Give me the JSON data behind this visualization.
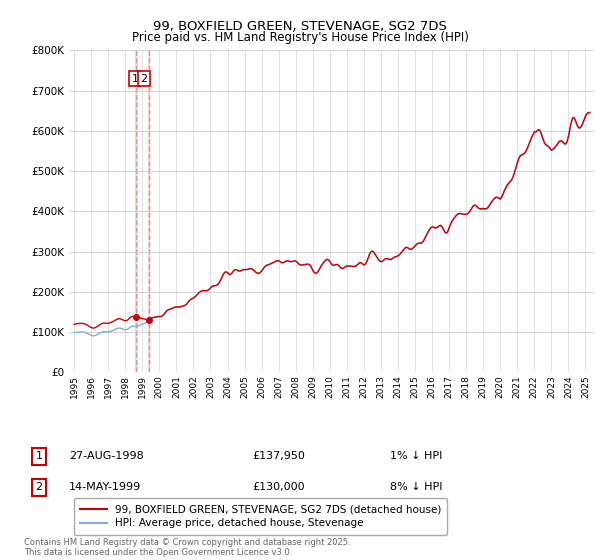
{
  "title": "99, BOXFIELD GREEN, STEVENAGE, SG2 7DS",
  "subtitle": "Price paid vs. HM Land Registry's House Price Index (HPI)",
  "transactions": [
    {
      "num": 1,
      "date": "27-AUG-1998",
      "price": 137950,
      "pct": "1%",
      "dir": "↓",
      "year": 1998.65
    },
    {
      "num": 2,
      "date": "14-MAY-1999",
      "price": 130000,
      "pct": "8%",
      "dir": "↓",
      "year": 1999.37
    }
  ],
  "red_label": "99, BOXFIELD GREEN, STEVENAGE, SG2 7DS (detached house)",
  "blue_label": "HPI: Average price, detached house, Stevenage",
  "footnote": "Contains HM Land Registry data © Crown copyright and database right 2025.\nThis data is licensed under the Open Government Licence v3.0.",
  "ylim": [
    0,
    800000
  ],
  "yticks": [
    0,
    100000,
    200000,
    300000,
    400000,
    500000,
    600000,
    700000,
    800000
  ],
  "xlim_start": 1994.7,
  "xlim_end": 2025.5,
  "xticks": [
    1995,
    1996,
    1997,
    1998,
    1999,
    2000,
    2001,
    2002,
    2003,
    2004,
    2005,
    2006,
    2007,
    2008,
    2009,
    2010,
    2011,
    2012,
    2013,
    2014,
    2015,
    2016,
    2017,
    2018,
    2019,
    2020,
    2021,
    2022,
    2023,
    2024,
    2025
  ],
  "red_color": "#cc0000",
  "blue_color": "#88aadd",
  "dashed_color": "#dd8888",
  "vline_fill": "#e8d0d0",
  "background": "#ffffff",
  "grid_color": "#cccccc",
  "t1_year": 1998.65,
  "t2_year": 1999.37,
  "t1_price": 137950,
  "t2_price": 130000,
  "hpi_years": [
    1995,
    1995.083,
    1995.167,
    1995.25,
    1995.333,
    1995.417,
    1995.5,
    1995.583,
    1995.667,
    1995.75,
    1995.833,
    1995.917,
    1996,
    1996.083,
    1996.167,
    1996.25,
    1996.333,
    1996.417,
    1996.5,
    1996.583,
    1996.667,
    1996.75,
    1996.833,
    1996.917,
    1997,
    1997.083,
    1997.167,
    1997.25,
    1997.333,
    1997.417,
    1997.5,
    1997.583,
    1997.667,
    1997.75,
    1997.833,
    1997.917,
    1998,
    1998.083,
    1998.167,
    1998.25,
    1998.333,
    1998.417,
    1998.5,
    1998.583,
    1998.667,
    1998.75,
    1998.833,
    1998.917,
    1999,
    1999.083,
    1999.167,
    1999.25,
    1999.333,
    1999.417,
    1999.5,
    1999.583,
    1999.667,
    1999.75,
    1999.833,
    1999.917,
    2000,
    2000.083,
    2000.167,
    2000.25,
    2000.333,
    2000.417,
    2000.5,
    2000.583,
    2000.667,
    2000.75,
    2000.833,
    2000.917,
    2001,
    2001.083,
    2001.167,
    2001.25,
    2001.333,
    2001.417,
    2001.5,
    2001.583,
    2001.667,
    2001.75,
    2001.833,
    2001.917,
    2002,
    2002.083,
    2002.167,
    2002.25,
    2002.333,
    2002.417,
    2002.5,
    2002.583,
    2002.667,
    2002.75,
    2002.833,
    2002.917,
    2003,
    2003.083,
    2003.167,
    2003.25,
    2003.333,
    2003.417,
    2003.5,
    2003.583,
    2003.667,
    2003.75,
    2003.833,
    2003.917,
    2004,
    2004.083,
    2004.167,
    2004.25,
    2004.333,
    2004.417,
    2004.5,
    2004.583,
    2004.667,
    2004.75,
    2004.833,
    2004.917,
    2005,
    2005.083,
    2005.167,
    2005.25,
    2005.333,
    2005.417,
    2005.5,
    2005.583,
    2005.667,
    2005.75,
    2005.833,
    2005.917,
    2006,
    2006.083,
    2006.167,
    2006.25,
    2006.333,
    2006.417,
    2006.5,
    2006.583,
    2006.667,
    2006.75,
    2006.833,
    2006.917,
    2007,
    2007.083,
    2007.167,
    2007.25,
    2007.333,
    2007.417,
    2007.5,
    2007.583,
    2007.667,
    2007.75,
    2007.833,
    2007.917,
    2008,
    2008.083,
    2008.167,
    2008.25,
    2008.333,
    2008.417,
    2008.5,
    2008.583,
    2008.667,
    2008.75,
    2008.833,
    2008.917,
    2009,
    2009.083,
    2009.167,
    2009.25,
    2009.333,
    2009.417,
    2009.5,
    2009.583,
    2009.667,
    2009.75,
    2009.833,
    2009.917,
    2010,
    2010.083,
    2010.167,
    2010.25,
    2010.333,
    2010.417,
    2010.5,
    2010.583,
    2010.667,
    2010.75,
    2010.833,
    2010.917,
    2011,
    2011.083,
    2011.167,
    2011.25,
    2011.333,
    2011.417,
    2011.5,
    2011.583,
    2011.667,
    2011.75,
    2011.833,
    2011.917,
    2012,
    2012.083,
    2012.167,
    2012.25,
    2012.333,
    2012.417,
    2012.5,
    2012.583,
    2012.667,
    2012.75,
    2012.833,
    2012.917,
    2013,
    2013.083,
    2013.167,
    2013.25,
    2013.333,
    2013.417,
    2013.5,
    2013.583,
    2013.667,
    2013.75,
    2013.833,
    2013.917,
    2014,
    2014.083,
    2014.167,
    2014.25,
    2014.333,
    2014.417,
    2014.5,
    2014.583,
    2014.667,
    2014.75,
    2014.833,
    2014.917,
    2015,
    2015.083,
    2015.167,
    2015.25,
    2015.333,
    2015.417,
    2015.5,
    2015.583,
    2015.667,
    2015.75,
    2015.833,
    2015.917,
    2016,
    2016.083,
    2016.167,
    2016.25,
    2016.333,
    2016.417,
    2016.5,
    2016.583,
    2016.667,
    2016.75,
    2016.833,
    2016.917,
    2017,
    2017.083,
    2017.167,
    2017.25,
    2017.333,
    2017.417,
    2017.5,
    2017.583,
    2017.667,
    2017.75,
    2017.833,
    2017.917,
    2018,
    2018.083,
    2018.167,
    2018.25,
    2018.333,
    2018.417,
    2018.5,
    2018.583,
    2018.667,
    2018.75,
    2018.833,
    2018.917,
    2019,
    2019.083,
    2019.167,
    2019.25,
    2019.333,
    2019.417,
    2019.5,
    2019.583,
    2019.667,
    2019.75,
    2019.833,
    2019.917,
    2020,
    2020.083,
    2020.167,
    2020.25,
    2020.333,
    2020.417,
    2020.5,
    2020.583,
    2020.667,
    2020.75,
    2020.833,
    2020.917,
    2021,
    2021.083,
    2021.167,
    2021.25,
    2021.333,
    2021.417,
    2021.5,
    2021.583,
    2021.667,
    2021.75,
    2021.833,
    2021.917,
    2022,
    2022.083,
    2022.167,
    2022.25,
    2022.333,
    2022.417,
    2022.5,
    2022.583,
    2022.667,
    2022.75,
    2022.833,
    2022.917,
    2023,
    2023.083,
    2023.167,
    2023.25,
    2023.333,
    2023.417,
    2023.5,
    2023.583,
    2023.667,
    2023.75,
    2023.833,
    2023.917,
    2024,
    2024.083,
    2024.167,
    2024.25,
    2024.333,
    2024.417,
    2024.5,
    2024.583,
    2024.667,
    2024.75,
    2024.833,
    2024.917,
    2025,
    2025.083,
    2025.167,
    2025.25
  ]
}
